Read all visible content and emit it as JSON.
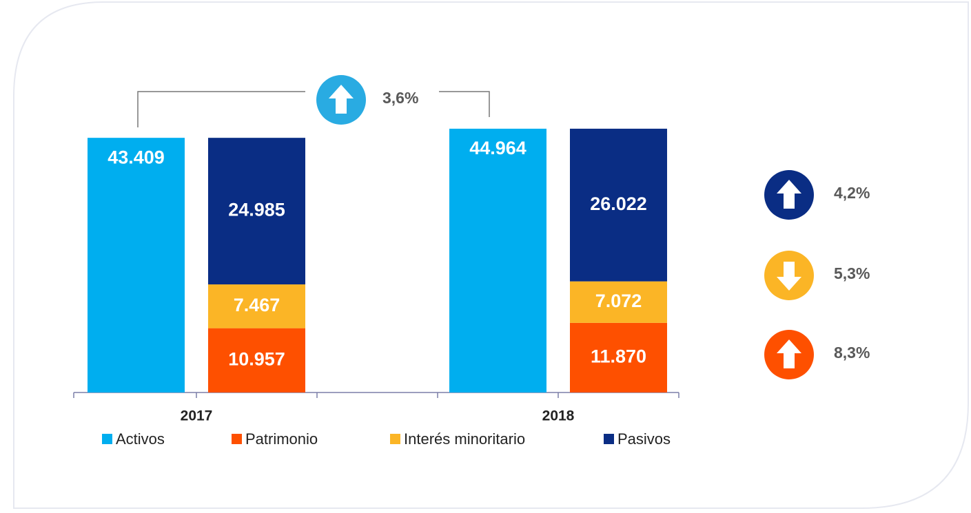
{
  "chart_data": {
    "type": "bar",
    "categories": [
      "2017",
      "2018"
    ],
    "ylim": [
      0,
      50000
    ],
    "series": [
      {
        "name": "Activos",
        "color": "#00aeef",
        "stack": 0,
        "label_position": "top",
        "values": [
          43409,
          44964
        ],
        "value_labels": [
          "43.409",
          "44.964"
        ]
      },
      {
        "name": "Patrimonio",
        "color": "#fe5000",
        "stack": 1,
        "label_position": "center",
        "values": [
          10957,
          11870
        ],
        "value_labels": [
          "10.957",
          "11.870"
        ]
      },
      {
        "name": "Interés minoritario",
        "color": "#fbb526",
        "stack": 1,
        "label_position": "center",
        "values": [
          7467,
          7072
        ],
        "value_labels": [
          "7.467",
          "7.072"
        ]
      },
      {
        "name": "Pasivos",
        "color": "#0a2d84",
        "stack": 1,
        "label_position": "center",
        "values": [
          24985,
          26022
        ],
        "value_labels": [
          "24.985",
          "26.022"
        ]
      }
    ],
    "changes": [
      {
        "label": "3,6%",
        "direction": "up",
        "color": "#29abe2"
      },
      {
        "label": "4,2%",
        "direction": "up",
        "color": "#0a2d84"
      },
      {
        "label": "5,3%",
        "direction": "down",
        "color": "#fbb526"
      },
      {
        "label": "8,3%",
        "direction": "up",
        "color": "#fe5000"
      }
    ]
  }
}
